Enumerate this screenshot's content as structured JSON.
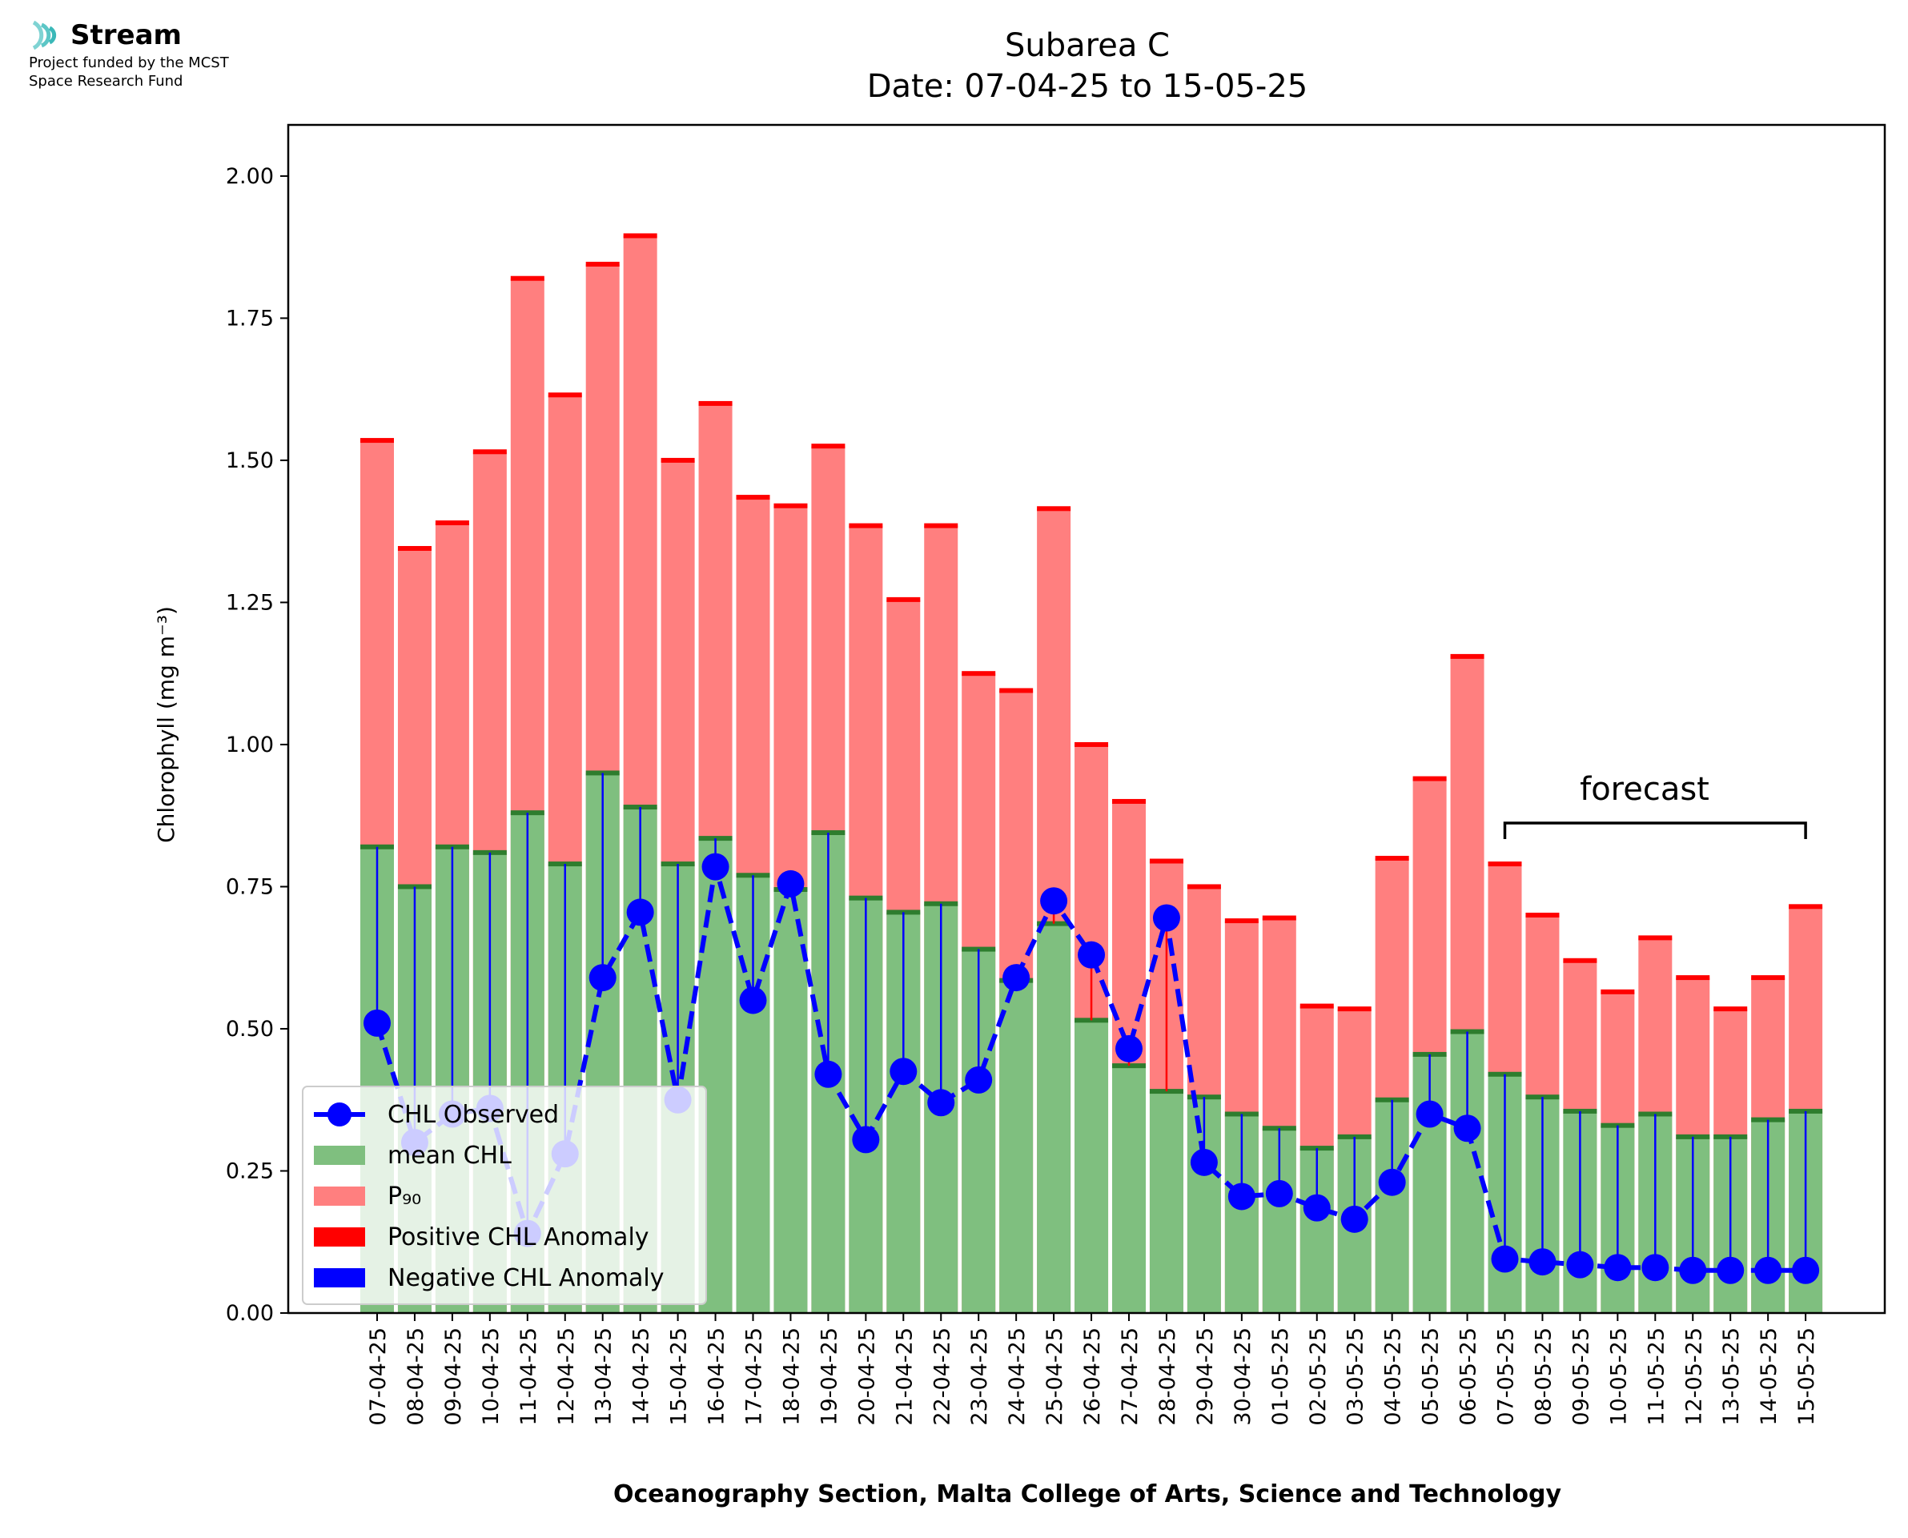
{
  "logo": {
    "name": "Stream",
    "subtitle_line1": "Project funded by the MCST",
    "subtitle_line2": "Space Research Fund",
    "icon": "stream-waves-icon"
  },
  "chart_data": {
    "type": "bar",
    "title_line1": "Subarea C",
    "title_line2": "Date: 07-04-25 to 15-05-25",
    "xlabel": "Oceanography Section, Malta College of Arts, Science and Technology",
    "ylabel": "Chlorophyll (mg m⁻³)",
    "ylim": [
      0,
      2.09
    ],
    "yticks": [
      "0.00",
      "0.25",
      "0.50",
      "0.75",
      "1.00",
      "1.25",
      "1.50",
      "1.75",
      "2.00"
    ],
    "categories": [
      "07-04-25",
      "08-04-25",
      "09-04-25",
      "10-04-25",
      "11-04-25",
      "12-04-25",
      "13-04-25",
      "14-04-25",
      "15-04-25",
      "16-04-25",
      "17-04-25",
      "18-04-25",
      "19-04-25",
      "20-04-25",
      "21-04-25",
      "22-04-25",
      "23-04-25",
      "24-04-25",
      "25-04-25",
      "26-04-25",
      "27-04-25",
      "28-04-25",
      "29-04-25",
      "30-04-25",
      "01-05-25",
      "02-05-25",
      "03-05-25",
      "04-05-25",
      "05-05-25",
      "06-05-25",
      "07-05-25",
      "08-05-25",
      "09-05-25",
      "10-05-25",
      "11-05-25",
      "12-05-25",
      "13-05-25",
      "14-05-25",
      "15-05-25"
    ],
    "series": [
      {
        "name": "mean CHL",
        "color": "#7fbf7f",
        "values": [
          0.82,
          0.75,
          0.82,
          0.81,
          0.88,
          0.79,
          0.95,
          0.89,
          0.79,
          0.835,
          0.77,
          0.745,
          0.845,
          0.73,
          0.705,
          0.72,
          0.64,
          0.585,
          0.685,
          0.515,
          0.435,
          0.39,
          0.38,
          0.35,
          0.325,
          0.29,
          0.31,
          0.375,
          0.455,
          0.495,
          0.42,
          0.38,
          0.355,
          0.33,
          0.35,
          0.31,
          0.31,
          0.34,
          0.355
        ]
      },
      {
        "name": "P₉₀",
        "color": "#ff7f7f",
        "values": [
          1.535,
          1.345,
          1.39,
          1.515,
          1.82,
          1.615,
          1.845,
          1.895,
          1.5,
          1.6,
          1.435,
          1.42,
          1.525,
          1.385,
          1.255,
          1.385,
          1.125,
          1.095,
          1.415,
          1.0,
          0.9,
          0.795,
          0.75,
          0.69,
          0.695,
          0.54,
          0.535,
          0.8,
          0.94,
          1.155,
          0.79,
          0.7,
          0.62,
          0.565,
          0.66,
          0.59,
          0.535,
          0.59,
          0.715
        ]
      },
      {
        "name": "CHL Observed",
        "color": "#0000ff",
        "values": [
          0.51,
          0.3,
          0.35,
          0.36,
          0.14,
          0.28,
          0.59,
          0.705,
          0.375,
          0.785,
          0.55,
          0.755,
          0.42,
          0.305,
          0.425,
          0.37,
          0.41,
          0.59,
          0.725,
          0.63,
          0.465,
          0.695,
          0.265,
          0.205,
          0.21,
          0.185,
          0.165,
          0.23,
          0.35,
          0.325,
          0.095,
          0.09,
          0.085,
          0.08,
          0.08,
          0.075,
          0.075,
          0.075,
          0.075
        ]
      }
    ],
    "legend": {
      "placement": "lower-left",
      "items": [
        "CHL Observed",
        "mean CHL",
        "P₉₀",
        "Positive CHL Anomaly",
        "Negative CHL Anomaly"
      ],
      "colors": [
        "#0000ff",
        "#7fbf7f",
        "#ff7f7f",
        "#ff0000",
        "#0000ff"
      ]
    },
    "annotation": {
      "text": "forecast",
      "from": "07-05-25",
      "to": "15-05-25"
    },
    "colors": {
      "mean_edge": "#2e7d2e",
      "p90_edge": "#ff0000",
      "positive_anomaly": "#ff0000",
      "negative_anomaly": "#0000ff"
    }
  }
}
